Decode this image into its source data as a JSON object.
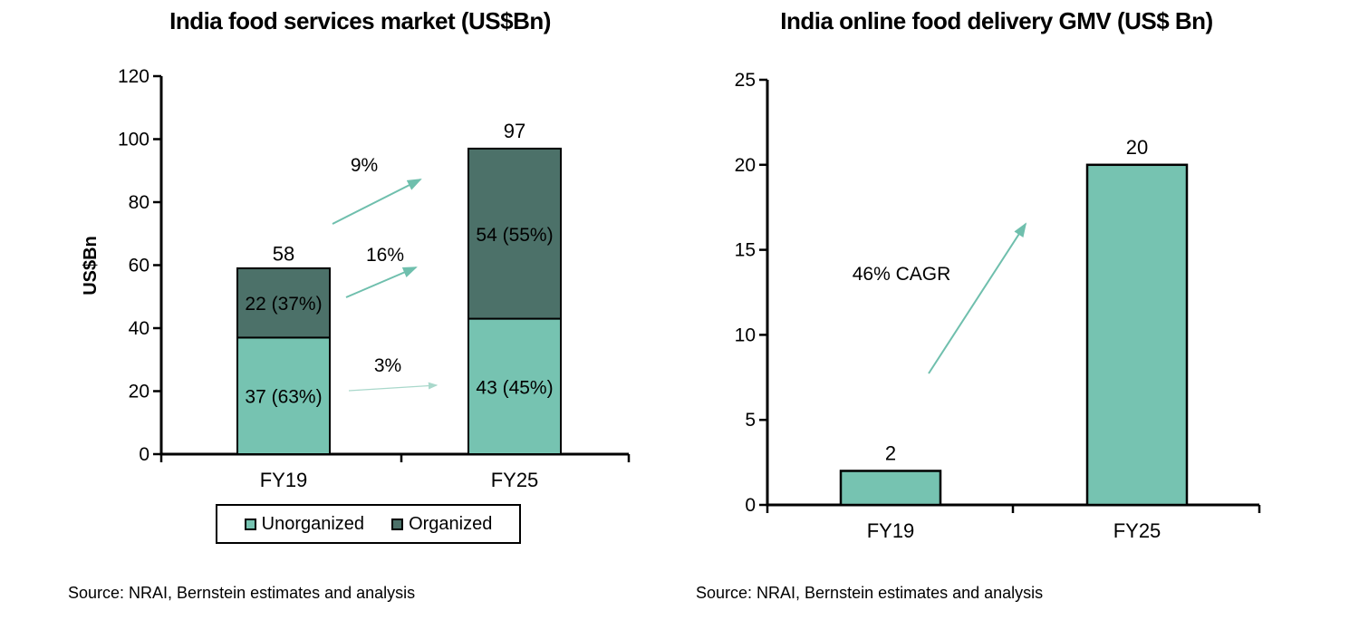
{
  "colors": {
    "unorganized": "#76C3B1",
    "organized": "#4C7169",
    "arrow": "#6FBFAD",
    "arrow_light": "#A9D8CB",
    "axis": "#000000",
    "text": "#000000"
  },
  "chart_data": [
    {
      "type": "bar",
      "subtype": "stacked",
      "title": "India food services market (US$Bn)",
      "ylabel": "US$Bn",
      "xlabel": "",
      "ylim": [
        0,
        120
      ],
      "yticks": [
        0,
        20,
        40,
        60,
        80,
        100,
        120
      ],
      "categories": [
        "FY19",
        "FY25"
      ],
      "series": [
        {
          "name": "Unorganized",
          "values": [
            37,
            43
          ],
          "labels": [
            "37 (63%)",
            "43 (45%)"
          ],
          "color_key": "unorganized"
        },
        {
          "name": "Organized",
          "values": [
            22,
            54
          ],
          "labels": [
            "22 (37%)",
            "54 (55%)"
          ],
          "color_key": "organized"
        }
      ],
      "totals": [
        58,
        97
      ],
      "total_labels": [
        "58",
        "97"
      ],
      "annotations": [
        {
          "text": "9%"
        },
        {
          "text": "16%"
        },
        {
          "text": "3%"
        }
      ],
      "legend_position": "bottom",
      "grid": false,
      "source": "Source: NRAI, Bernstein estimates and analysis"
    },
    {
      "type": "bar",
      "title": "India online food delivery GMV (US$ Bn)",
      "ylabel": "",
      "xlabel": "",
      "ylim": [
        0,
        25
      ],
      "yticks": [
        0,
        5,
        10,
        15,
        20,
        25
      ],
      "categories": [
        "FY19",
        "FY25"
      ],
      "values": [
        2,
        20
      ],
      "value_labels": [
        "2",
        "20"
      ],
      "color_key": "unorganized",
      "annotations": [
        {
          "text": "46% CAGR"
        }
      ],
      "grid": false,
      "source": "Source: NRAI, Bernstein estimates and analysis"
    }
  ]
}
